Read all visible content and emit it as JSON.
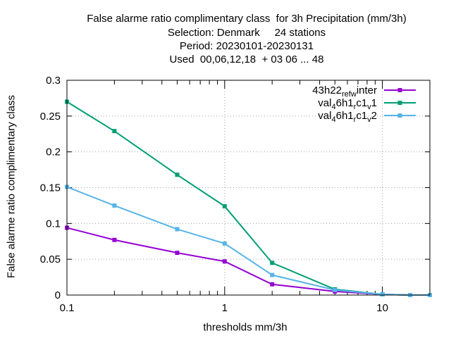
{
  "chart_data": {
    "type": "line",
    "title_lines": [
      "False alarme ratio complimentary class  for 3h Precipitation (mm/3h)",
      "Selection: Denmark     24 stations",
      "Period: 20230101-20230131",
      "Used  00,06,12,18  + 03 06 ... 48"
    ],
    "xlabel": "thresholds mm/3h",
    "ylabel": "False alarme ratio complimentary class",
    "x_scale": "log",
    "xlim": [
      0.1,
      20
    ],
    "ylim": [
      0,
      0.3
    ],
    "x_ticks": [
      0.1,
      1,
      10
    ],
    "x_tick_labels": [
      "0.1",
      "1",
      "10"
    ],
    "y_ticks": [
      0,
      0.05,
      0.1,
      0.15,
      0.2,
      0.25,
      0.3
    ],
    "y_tick_labels": [
      "0",
      "0.05",
      "0.1",
      "0.15",
      "0.2",
      "0.25",
      "0.3"
    ],
    "grid": true,
    "legend_position": "top-right",
    "x": [
      0.1,
      0.2,
      0.5,
      1,
      2,
      5,
      10,
      15,
      20
    ],
    "series": [
      {
        "name": "43h22_ref_winter",
        "legend_parts": [
          [
            "43h22",
            ""
          ],
          [
            "ref",
            "sub"
          ],
          [
            "w",
            "sub"
          ],
          [
            "inter",
            ""
          ]
        ],
        "color": "#9400d3",
        "values": [
          0.094,
          0.077,
          0.059,
          0.047,
          0.015,
          0.005,
          0.001,
          0.0,
          0.0
        ]
      },
      {
        "name": "val_46h1_rc1_v1",
        "legend_parts": [
          [
            "val",
            ""
          ],
          [
            "4",
            "sub"
          ],
          [
            "6h1",
            ""
          ],
          [
            "r",
            "sub"
          ],
          [
            "c1",
            ""
          ],
          [
            "v",
            "sub"
          ],
          [
            "1",
            ""
          ]
        ],
        "color": "#009e73",
        "values": [
          0.27,
          0.229,
          0.168,
          0.124,
          0.045,
          0.008,
          0.001,
          0.0,
          0.0
        ]
      },
      {
        "name": "val_46h1_rc1_v2",
        "legend_parts": [
          [
            "val",
            ""
          ],
          [
            "4",
            "sub"
          ],
          [
            "6h1",
            ""
          ],
          [
            "r",
            "sub"
          ],
          [
            "c1",
            ""
          ],
          [
            "v",
            "sub"
          ],
          [
            "2",
            ""
          ]
        ],
        "color": "#56b4e9",
        "values": [
          0.151,
          0.125,
          0.092,
          0.072,
          0.028,
          0.007,
          0.001,
          0.0,
          0.0
        ]
      }
    ]
  }
}
